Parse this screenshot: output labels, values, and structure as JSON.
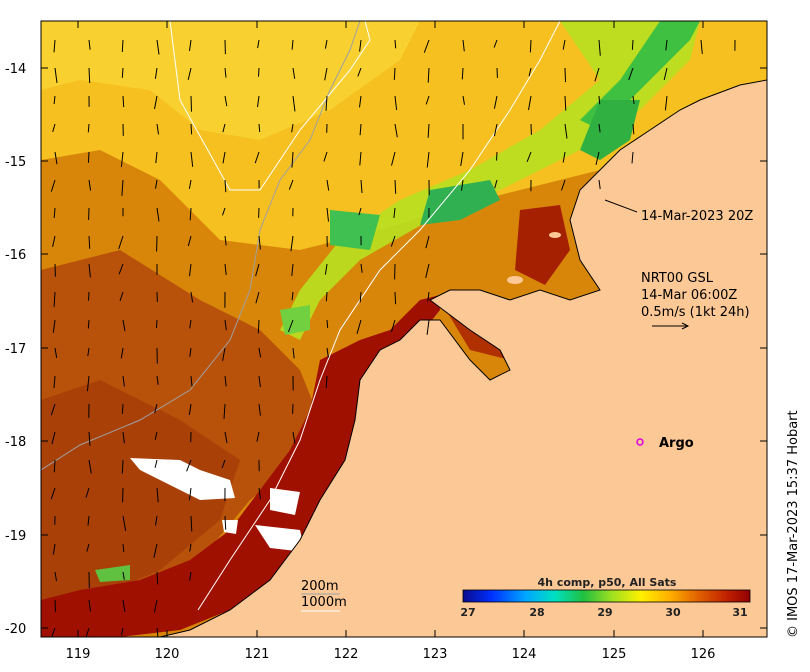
{
  "map": {
    "x_ticks": [
      "119",
      "120",
      "121",
      "122",
      "123",
      "124",
      "125",
      "126"
    ],
    "y_ticks": [
      "-14",
      "-15",
      "-16",
      "-17",
      "-18",
      "-19",
      "-20"
    ],
    "timestamp_label": "14-Mar-2023 20Z",
    "current_model_label": "NRT00 GSL",
    "current_time_label": "14-Mar 06:00Z",
    "current_scale_label": "0.5m/s (1kt 24h)",
    "argo_label": "Argo",
    "isobath_200_label": "200m",
    "isobath_1000_label": "1000m",
    "credit": "© IMOS 17-Mar-2023 15:37 Hobart"
  },
  "colorbar": {
    "title": "4h comp, p50, All Sats",
    "ticks": [
      "27",
      "28",
      "29",
      "30",
      "31"
    ]
  },
  "colors": {
    "land": "#fcc896",
    "argo_marker": "#e000e0"
  }
}
